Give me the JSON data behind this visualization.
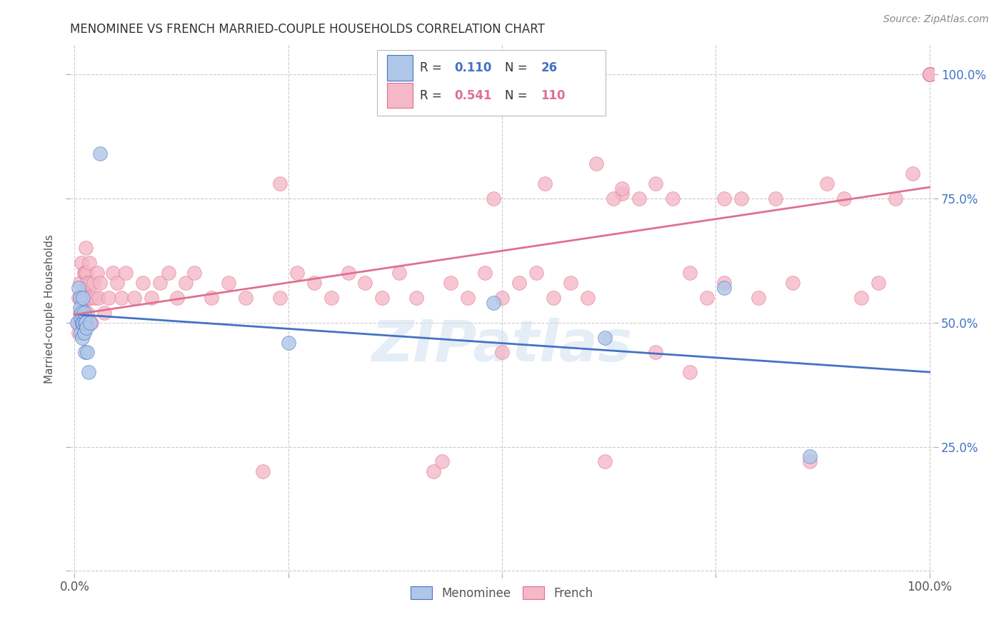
{
  "title": "MENOMINEE VS FRENCH MARRIED-COUPLE HOUSEHOLDS CORRELATION CHART",
  "source": "Source: ZipAtlas.com",
  "ylabel": "Married-couple Households",
  "watermark": "ZIPatlas",
  "menominee_R": 0.11,
  "menominee_N": 26,
  "french_R": 0.541,
  "french_N": 110,
  "menominee_color": "#aec6e8",
  "french_color": "#f4b8c8",
  "menominee_line_color": "#4472c4",
  "french_line_color": "#e07090",
  "background_color": "#ffffff",
  "grid_color": "#cccccc",
  "menominee_x": [
    0.003,
    0.005,
    0.006,
    0.006,
    0.007,
    0.007,
    0.008,
    0.009,
    0.009,
    0.01,
    0.01,
    0.011,
    0.011,
    0.012,
    0.012,
    0.013,
    0.014,
    0.015,
    0.016,
    0.018,
    0.03,
    0.25,
    0.49,
    0.62,
    0.76,
    0.86
  ],
  "menominee_y": [
    0.5,
    0.57,
    0.55,
    0.53,
    0.51,
    0.48,
    0.52,
    0.47,
    0.5,
    0.55,
    0.5,
    0.48,
    0.52,
    0.44,
    0.5,
    0.5,
    0.49,
    0.44,
    0.4,
    0.5,
    0.84,
    0.46,
    0.54,
    0.47,
    0.57,
    0.23
  ],
  "french_x": [
    0.004,
    0.005,
    0.005,
    0.006,
    0.006,
    0.007,
    0.007,
    0.008,
    0.008,
    0.009,
    0.009,
    0.01,
    0.01,
    0.011,
    0.011,
    0.012,
    0.012,
    0.013,
    0.013,
    0.014,
    0.014,
    0.015,
    0.015,
    0.016,
    0.017,
    0.018,
    0.019,
    0.02,
    0.022,
    0.024,
    0.026,
    0.028,
    0.03,
    0.035,
    0.04,
    0.045,
    0.05,
    0.055,
    0.06,
    0.07,
    0.08,
    0.09,
    0.1,
    0.11,
    0.12,
    0.13,
    0.14,
    0.16,
    0.18,
    0.2,
    0.22,
    0.24,
    0.26,
    0.28,
    0.3,
    0.32,
    0.34,
    0.36,
    0.38,
    0.4,
    0.42,
    0.44,
    0.46,
    0.48,
    0.5,
    0.52,
    0.54,
    0.56,
    0.58,
    0.6,
    0.61,
    0.62,
    0.64,
    0.66,
    0.68,
    0.7,
    0.72,
    0.74,
    0.76,
    0.78,
    0.8,
    0.82,
    0.84,
    0.86,
    0.88,
    0.9,
    0.92,
    0.94,
    0.96,
    0.98,
    1.0,
    1.0,
    1.0,
    1.0,
    1.0,
    1.0,
    1.0,
    1.0,
    1.0,
    1.0,
    0.24,
    0.43,
    0.49,
    0.5,
    0.55,
    0.63,
    0.64,
    0.68,
    0.72,
    0.76
  ],
  "french_y": [
    0.5,
    0.55,
    0.48,
    0.58,
    0.52,
    0.55,
    0.5,
    0.62,
    0.5,
    0.55,
    0.52,
    0.48,
    0.53,
    0.6,
    0.5,
    0.55,
    0.6,
    0.65,
    0.55,
    0.6,
    0.5,
    0.58,
    0.52,
    0.55,
    0.62,
    0.58,
    0.55,
    0.5,
    0.58,
    0.55,
    0.6,
    0.55,
    0.58,
    0.52,
    0.55,
    0.6,
    0.58,
    0.55,
    0.6,
    0.55,
    0.58,
    0.55,
    0.58,
    0.6,
    0.55,
    0.58,
    0.6,
    0.55,
    0.58,
    0.55,
    0.2,
    0.55,
    0.6,
    0.58,
    0.55,
    0.6,
    0.58,
    0.55,
    0.6,
    0.55,
    0.2,
    0.58,
    0.55,
    0.6,
    0.55,
    0.58,
    0.6,
    0.55,
    0.58,
    0.55,
    0.82,
    0.22,
    0.76,
    0.75,
    0.78,
    0.75,
    0.6,
    0.55,
    0.58,
    0.75,
    0.55,
    0.75,
    0.58,
    0.22,
    0.78,
    0.75,
    0.55,
    0.58,
    0.75,
    0.8,
    1.0,
    1.0,
    1.0,
    1.0,
    1.0,
    1.0,
    1.0,
    1.0,
    1.0,
    1.0,
    0.78,
    0.22,
    0.75,
    0.44,
    0.78,
    0.75,
    0.77,
    0.44,
    0.4,
    0.75
  ],
  "xlim": [
    0.0,
    1.0
  ],
  "ylim": [
    0.0,
    1.0
  ],
  "right_ytick_color": "#4472c4",
  "legend_R1": "0.110",
  "legend_N1": "26",
  "legend_R2": "0.541",
  "legend_N2": "110"
}
